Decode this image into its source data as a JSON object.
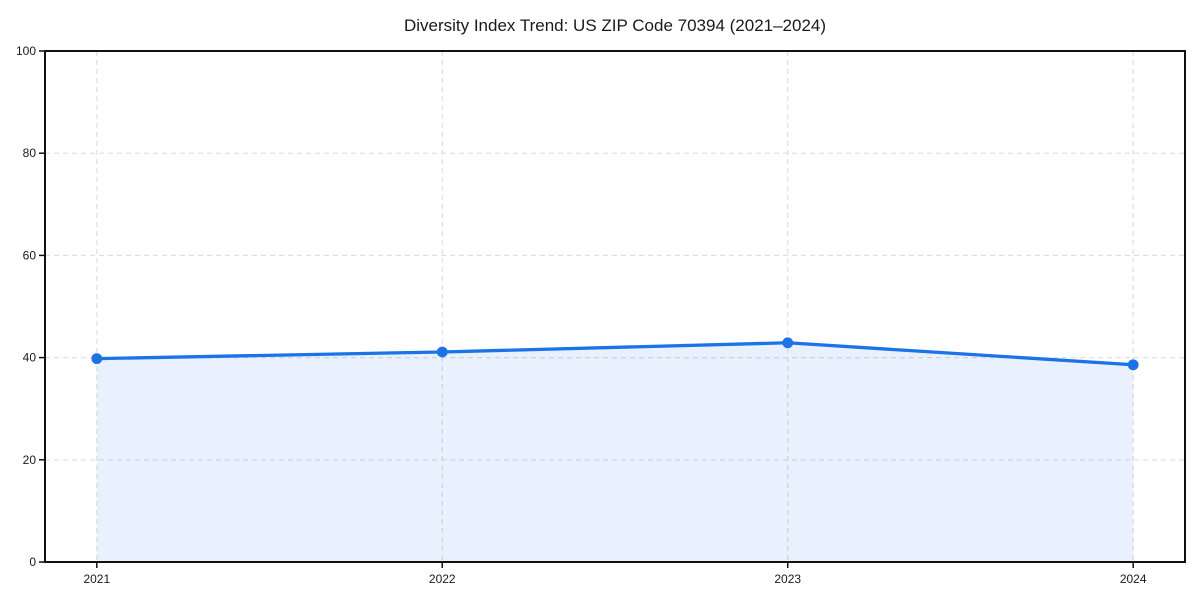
{
  "chart_data": {
    "type": "area",
    "title": "Diversity Index Trend: US ZIP Code 70394 (2021–2024)",
    "x": [
      "2021",
      "2022",
      "2023",
      "2024"
    ],
    "values": [
      39.8,
      41.1,
      42.9,
      38.6
    ],
    "xlabel": "",
    "ylabel": "",
    "ylim": [
      0,
      100
    ],
    "yticks": [
      0,
      20,
      40,
      60,
      80,
      100
    ],
    "grid": true,
    "grid_style": "dashed",
    "legend": "none",
    "line_color": "#1a73e8",
    "marker_color": "#1a73e8",
    "fill_color": "#1a73e8",
    "fill_opacity": 0.1,
    "grid_color": "#dfdfdf",
    "axis_color": "#111111",
    "text_color": "#1a1a1a",
    "background_color": "#ffffff"
  }
}
